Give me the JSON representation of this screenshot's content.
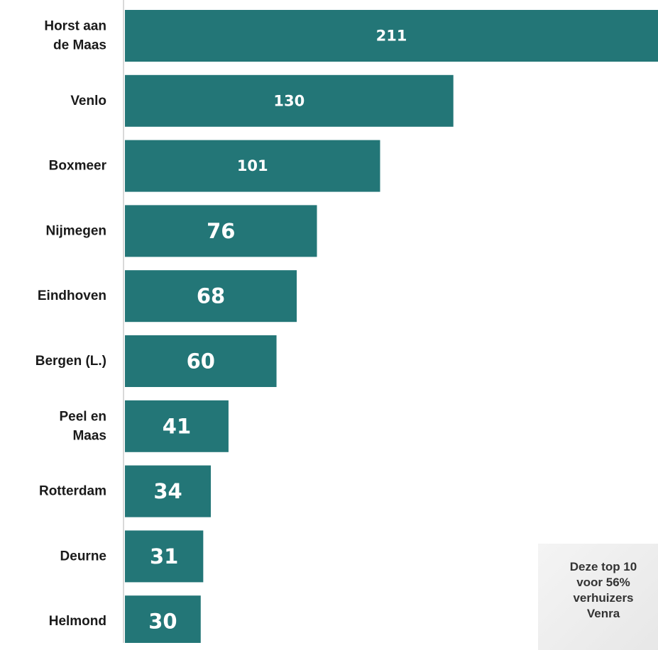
{
  "chart_data": {
    "type": "bar",
    "orientation": "horizontal",
    "categories": [
      "Horst aan de Maas",
      "Venlo",
      "Boxmeer",
      "Nijmegen",
      "Eindhoven",
      "Bergen (L.)",
      "Peel en Maas",
      "Rotterdam",
      "Deurne",
      "Helmond"
    ],
    "category_lines": [
      [
        "Horst aan",
        "de Maas"
      ],
      [
        "Venlo"
      ],
      [
        "Boxmeer"
      ],
      [
        "Nijmegen"
      ],
      [
        "Eindhoven"
      ],
      [
        "Bergen (L.)"
      ],
      [
        "Peel en",
        "Maas"
      ],
      [
        "Rotterdam"
      ],
      [
        "Deurne"
      ],
      [
        "Helmond"
      ]
    ],
    "values": [
      211,
      130,
      101,
      76,
      68,
      60,
      41,
      34,
      31,
      30
    ],
    "xlim": [
      0,
      211
    ],
    "grid": false,
    "bar_color": "#237677"
  },
  "callout": {
    "lines": [
      "Deze top 10",
      "voor 56%",
      "verhuizers",
      "Venra"
    ]
  }
}
